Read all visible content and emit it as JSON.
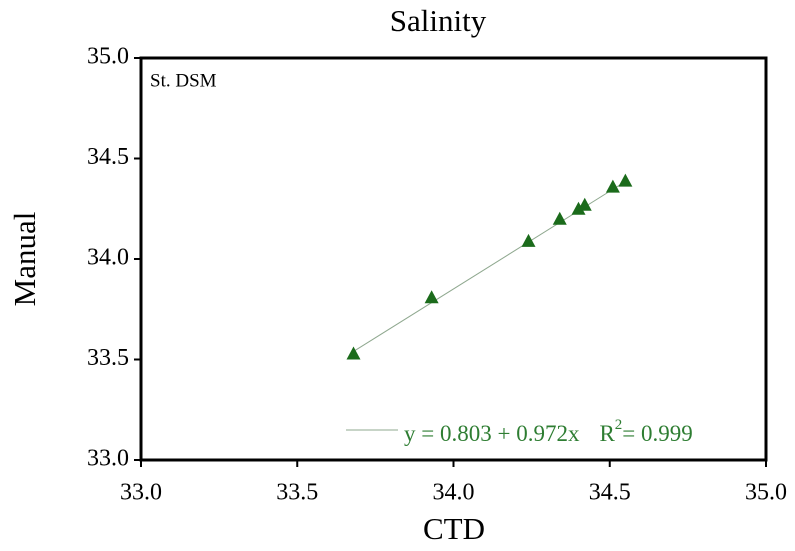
{
  "chart_data": {
    "type": "scatter",
    "title": "Salinity",
    "x_label": "CTD",
    "y_label": "Manual",
    "annotation": "St. DSM",
    "x": [
      33.68,
      33.93,
      34.24,
      34.34,
      34.4,
      34.42,
      34.51,
      34.55
    ],
    "series": [
      {
        "name": "St. DSM",
        "color": "#1b6b1b",
        "values": [
          33.53,
          33.81,
          34.09,
          34.2,
          34.25,
          34.27,
          34.36,
          34.39
        ]
      }
    ],
    "fit": {
      "intercept": 0.803,
      "slope": 0.972,
      "color": "#8fa88f",
      "text_color": "#2e7d32",
      "equation": "y = 0.803 + 0.972x",
      "r2_symbol": "R",
      "r2_exponent": "2",
      "r2_value": "= 0.999"
    },
    "xlim": [
      33.0,
      35.0
    ],
    "ylim": [
      33.0,
      35.0
    ],
    "xticks": [
      {
        "value": 33.0,
        "label": "33.0"
      },
      {
        "value": 33.5,
        "label": "33.5"
      },
      {
        "value": 34.0,
        "label": "34.0"
      },
      {
        "value": 34.5,
        "label": "34.5"
      },
      {
        "value": 35.0,
        "label": "35.0"
      }
    ],
    "yticks": [
      {
        "value": 33.0,
        "label": "33.0"
      },
      {
        "value": 33.5,
        "label": "33.5"
      },
      {
        "value": 34.0,
        "label": "34.0"
      },
      {
        "value": 34.5,
        "label": "34.5"
      },
      {
        "value": 35.0,
        "label": "35.0"
      }
    ]
  }
}
